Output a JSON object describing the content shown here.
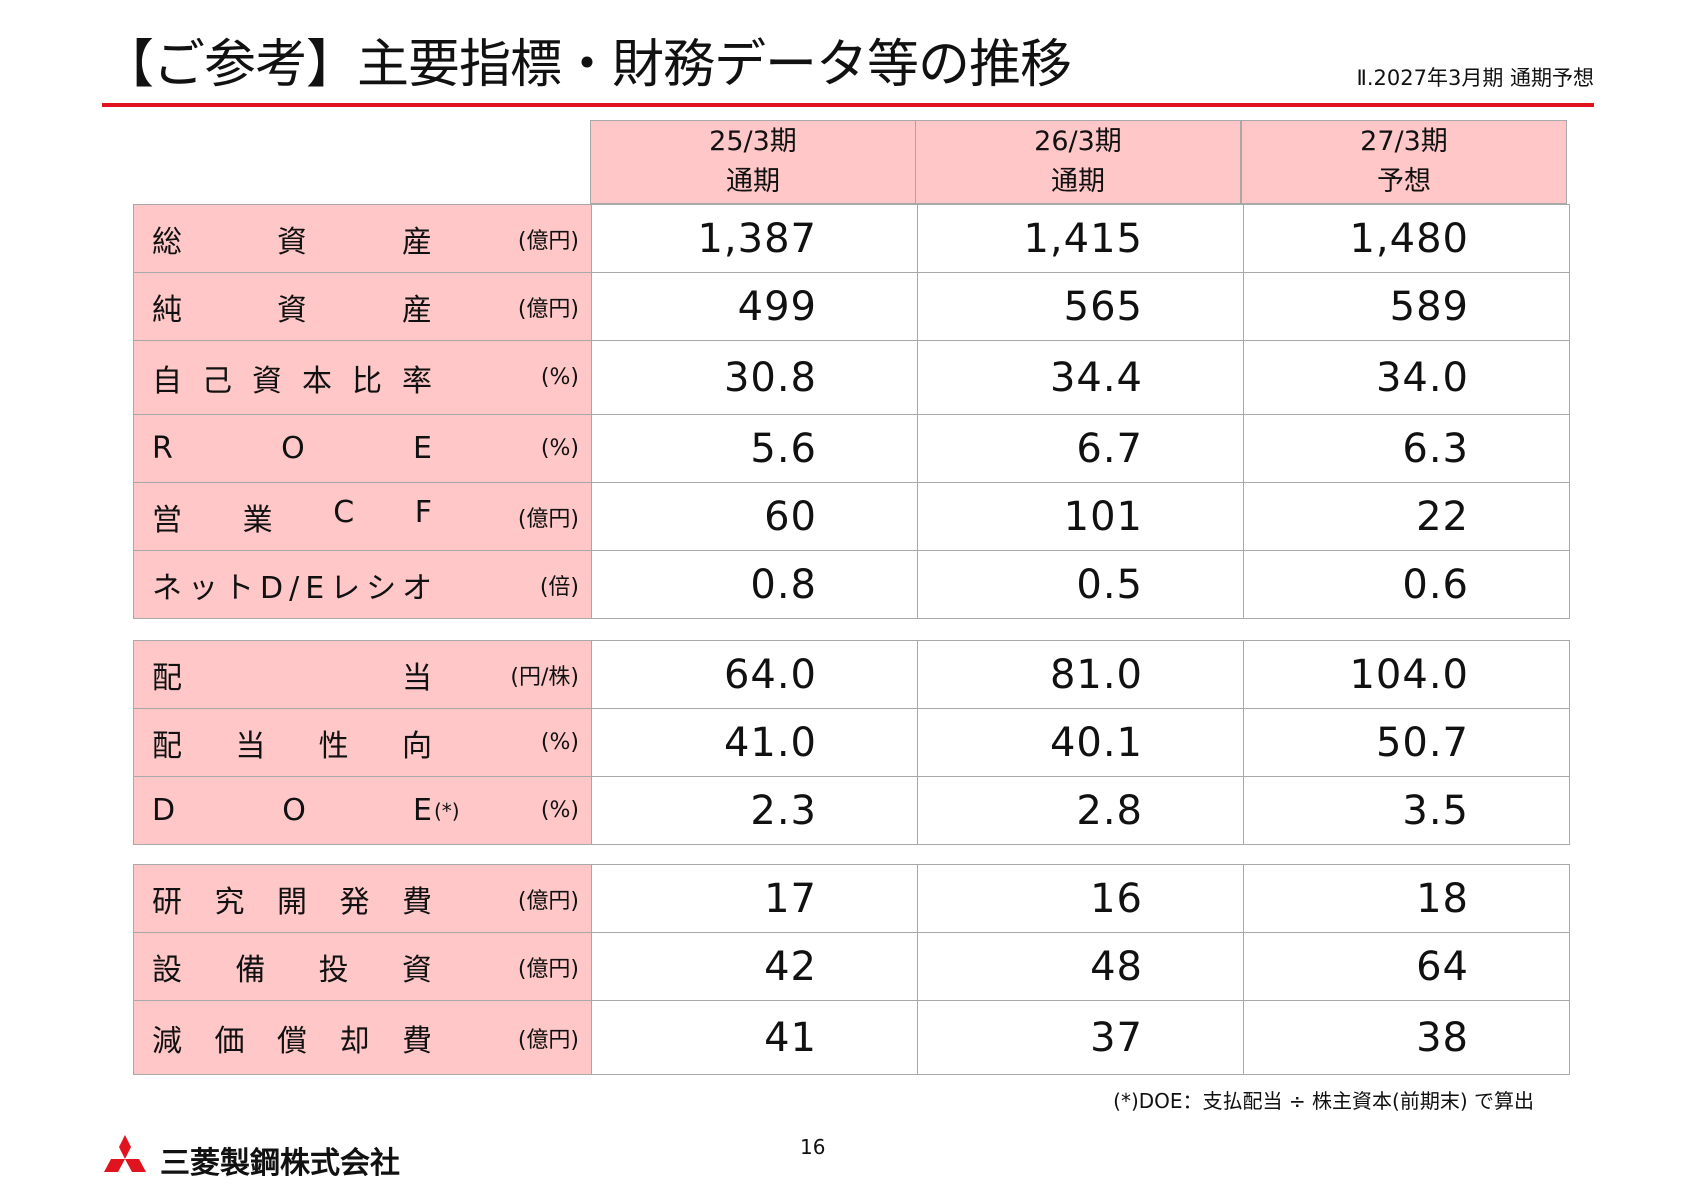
{
  "header": {
    "title": "【ご参考】主要指標・財務データ等の推移",
    "subtitle": "Ⅱ.2027年3月期 通期予想"
  },
  "columns": [
    {
      "period": "25/3期",
      "type": "通期"
    },
    {
      "period": "26/3期",
      "type": "通期"
    },
    {
      "period": "27/3期",
      "type": "予想"
    }
  ],
  "groups": [
    {
      "rows": [
        {
          "label": "総資産",
          "unit": "(億円)",
          "values": [
            "1,387",
            "1,415",
            "1,480"
          ]
        },
        {
          "label": "純資産",
          "unit": "(億円)",
          "values": [
            "499",
            "565",
            "589"
          ]
        },
        {
          "label": "自己資本比率",
          "unit": "(%)",
          "values": [
            "30.8",
            "34.4",
            "34.0"
          ]
        },
        {
          "label": "ROE",
          "unit": "(%)",
          "values": [
            "5.6",
            "6.7",
            "6.3"
          ]
        },
        {
          "label": "営業CF",
          "unit": "(億円)",
          "values": [
            "60",
            "101",
            "22"
          ]
        },
        {
          "label": "ネットD/Eレシオ",
          "unit": "(倍)",
          "values": [
            "0.8",
            "0.5",
            "0.6"
          ]
        }
      ]
    },
    {
      "rows": [
        {
          "label": "配当",
          "unit": "(円/株)",
          "values": [
            "64.0",
            "81.0",
            "104.0"
          ]
        },
        {
          "label": "配当性向",
          "unit": "(%)",
          "values": [
            "41.0",
            "40.1",
            "50.7"
          ]
        },
        {
          "label": "DOE",
          "note": "(*)",
          "unit": "(%)",
          "values": [
            "2.3",
            "2.8",
            "3.5"
          ]
        }
      ]
    },
    {
      "rows": [
        {
          "label": "研究開発費",
          "unit": "(億円)",
          "values": [
            "17",
            "16",
            "18"
          ]
        },
        {
          "label": "設備投資",
          "unit": "(億円)",
          "values": [
            "42",
            "48",
            "64"
          ]
        },
        {
          "label": "減価償却費",
          "unit": "(億円)",
          "values": [
            "41",
            "37",
            "38"
          ]
        }
      ]
    }
  ],
  "footnote": "(*)DOE：支払配当 ÷ 株主資本(前期末) で算出",
  "page_number": "16",
  "logo": {
    "icon": "three-diamonds-icon",
    "color": "#e0141e",
    "name": "三菱製鋼株式会社"
  },
  "colors": {
    "accent": "#e0141e",
    "label_bg": "#ffc7c7"
  }
}
